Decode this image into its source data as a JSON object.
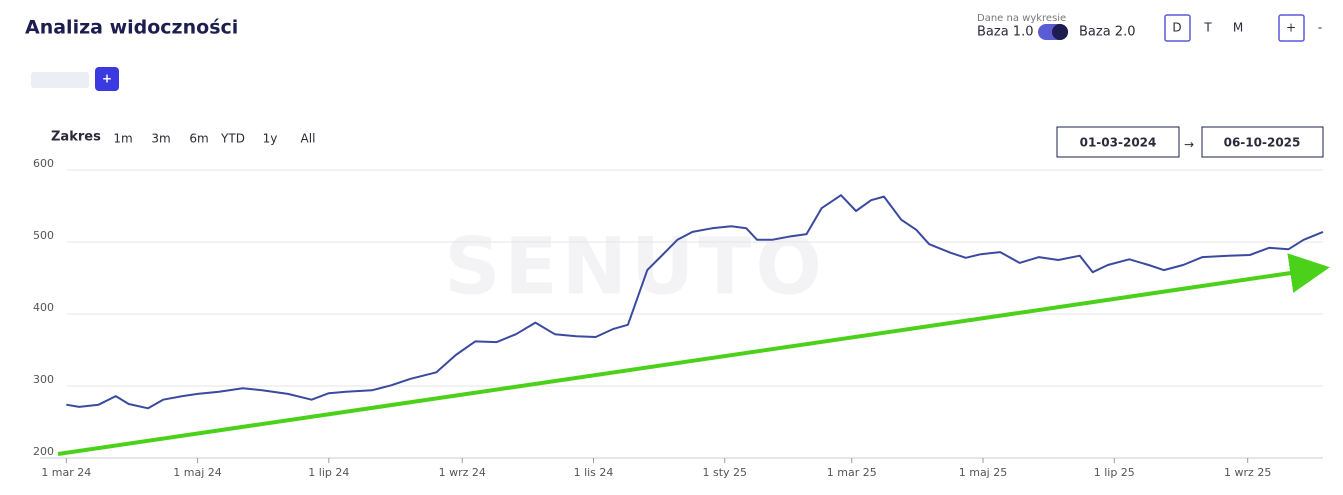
{
  "header": {
    "title": "Analiza widoczności",
    "data_label": "Dane na wykresie",
    "base_left": "Baza 1.0",
    "base_right": "Baza 2.0",
    "granularity": [
      "D",
      "T",
      "M"
    ],
    "zoom_in": "+",
    "zoom_out": "-",
    "add_button": "+"
  },
  "range": {
    "label": "Zakres",
    "options": [
      "1m",
      "3m",
      "6m",
      "YTD",
      "1y",
      "All"
    ],
    "date_from": "01-03-2024",
    "arrow": "→",
    "date_to": "06-10-2025"
  },
  "chart_data": {
    "type": "line",
    "watermark": "SENUTO",
    "color": "#3a4a9f",
    "grid": true,
    "x": [
      "2024-03-01",
      "2024-03-07",
      "2024-03-16",
      "2024-03-24",
      "2024-03-30",
      "2024-04-08",
      "2024-04-15",
      "2024-04-24",
      "2024-05-01",
      "2024-05-11",
      "2024-05-22",
      "2024-05-31",
      "2024-06-12",
      "2024-06-23",
      "2024-07-01",
      "2024-07-09",
      "2024-07-21",
      "2024-07-30",
      "2024-08-08",
      "2024-08-20",
      "2024-08-29",
      "2024-09-07",
      "2024-09-17",
      "2024-09-26",
      "2024-10-05",
      "2024-10-14",
      "2024-10-24",
      "2024-11-02",
      "2024-11-10",
      "2024-11-17",
      "2024-11-21",
      "2024-11-26",
      "2024-12-03",
      "2024-12-10",
      "2024-12-17",
      "2024-12-26",
      "2025-01-04",
      "2025-01-11",
      "2025-01-16",
      "2025-01-23",
      "2025-02-01",
      "2025-02-08",
      "2025-02-15",
      "2025-02-24",
      "2025-03-03",
      "2025-03-10",
      "2025-03-16",
      "2025-03-24",
      "2025-03-31",
      "2025-04-06",
      "2025-04-16",
      "2025-04-23",
      "2025-04-30",
      "2025-05-09",
      "2025-05-18",
      "2025-05-27",
      "2025-06-05",
      "2025-06-15",
      "2025-06-21",
      "2025-06-28",
      "2025-07-08",
      "2025-07-17",
      "2025-07-24",
      "2025-08-02",
      "2025-08-11",
      "2025-08-23",
      "2025-09-02",
      "2025-09-11",
      "2025-09-20",
      "2025-09-27",
      "2025-10-06"
    ],
    "values": [
      274,
      271,
      274,
      286,
      275,
      269,
      281,
      286,
      289,
      292,
      297,
      294,
      289,
      281,
      290,
      292,
      294,
      301,
      310,
      319,
      343,
      362,
      361,
      372,
      388,
      372,
      369,
      368,
      379,
      385,
      419,
      461,
      482,
      503,
      514,
      519,
      522,
      519,
      503,
      503,
      508,
      511,
      547,
      565,
      543,
      558,
      563,
      531,
      517,
      497,
      485,
      478,
      483,
      486,
      471,
      479,
      475,
      481,
      458,
      468,
      476,
      468,
      461,
      468,
      479,
      481,
      482,
      492,
      490,
      503,
      514
    ],
    "xlim": [
      "2024-02-28",
      "2025-10-06"
    ],
    "xticks": [
      {
        "value": "2024-03-01",
        "label": "1 mar 24"
      },
      {
        "value": "2024-05-01",
        "label": "1 maj 24"
      },
      {
        "value": "2024-07-01",
        "label": "1 lip 24"
      },
      {
        "value": "2024-09-01",
        "label": "1 wrz 24"
      },
      {
        "value": "2024-11-01",
        "label": "1 lis 24"
      },
      {
        "value": "2025-01-01",
        "label": "1 sty 25"
      },
      {
        "value": "2025-03-01",
        "label": "1 mar 25"
      },
      {
        "value": "2025-05-01",
        "label": "1 maj 25"
      },
      {
        "value": "2025-07-01",
        "label": "1 lip 25"
      },
      {
        "value": "2025-09-01",
        "label": "1 wrz 25"
      }
    ],
    "ylim": [
      200,
      600
    ],
    "yticks": [
      200,
      300,
      400,
      500,
      600
    ]
  }
}
